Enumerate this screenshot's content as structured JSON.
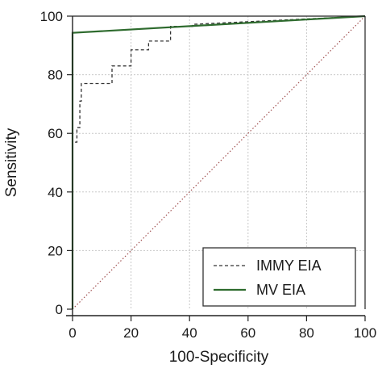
{
  "chart_data": {
    "type": "line",
    "title": "",
    "xlabel": "100-Specificity",
    "ylabel": "Sensitivity",
    "xlim": [
      0,
      100
    ],
    "ylim": [
      0,
      100
    ],
    "xticks": [
      0,
      20,
      40,
      60,
      80,
      100
    ],
    "yticks": [
      0,
      20,
      40,
      60,
      80,
      100
    ],
    "grid": true,
    "legend_position": "bottom-right",
    "series": [
      {
        "name": "IMMY EIA",
        "style": "dashed",
        "color": "#333333",
        "x": [
          0,
          0,
          1.5,
          1.5,
          2.5,
          2.5,
          3,
          3,
          13.5,
          13.5,
          20,
          20,
          26,
          26,
          33.5,
          33.5,
          41,
          41,
          100
        ],
        "y": [
          0,
          57,
          57,
          62,
          62,
          71,
          71,
          77,
          77,
          83,
          83,
          88.5,
          88.5,
          91.5,
          91.5,
          96.5,
          96.5,
          97.2,
          100
        ]
      },
      {
        "name": "MV EIA",
        "style": "solid",
        "color": "#2e6b2e",
        "x": [
          0,
          0,
          100
        ],
        "y": [
          0,
          94.3,
          100
        ]
      },
      {
        "name": "",
        "style": "dotted",
        "color": "#a05050",
        "x": [
          0,
          100
        ],
        "y": [
          0,
          100
        ]
      }
    ]
  }
}
